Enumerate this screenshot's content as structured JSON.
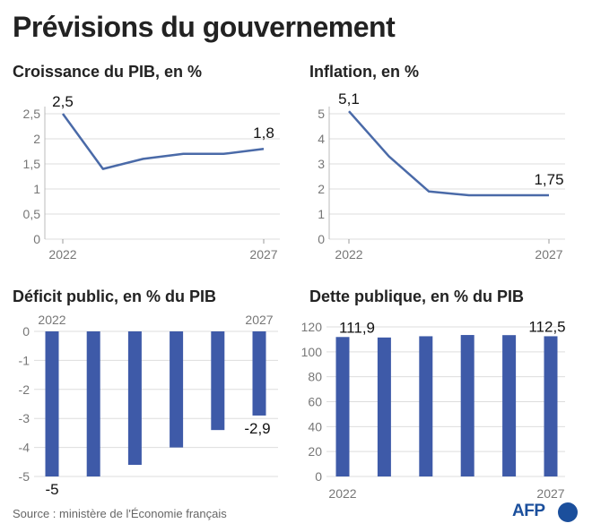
{
  "title": "Prévisions du gouvernement",
  "source": "Source : ministère de l'Économie français",
  "logo": "AFP",
  "colors": {
    "line": "#4a6aa8",
    "bar": "#3e5aa8",
    "grid": "#dddddd",
    "tick": "#777777"
  },
  "chart_data": [
    {
      "type": "line",
      "title": "Croissance du PIB, en %",
      "x": [
        2022,
        2023,
        2024,
        2025,
        2026,
        2027
      ],
      "x_tick_labels": [
        "2022",
        "2027"
      ],
      "values": [
        2.5,
        1.4,
        1.6,
        1.7,
        1.7,
        1.8
      ],
      "data_labels": {
        "first": "2,5",
        "last": "1,8"
      },
      "yticks": [
        "0",
        "0,5",
        "1",
        "1,5",
        "2",
        "2,5"
      ],
      "ylim": [
        0,
        2.5
      ],
      "grid": true
    },
    {
      "type": "line",
      "title": "Inflation, en %",
      "x": [
        2022,
        2023,
        2024,
        2025,
        2026,
        2027
      ],
      "x_tick_labels": [
        "2022",
        "2027"
      ],
      "values": [
        5.1,
        3.3,
        1.9,
        1.75,
        1.75,
        1.75
      ],
      "data_labels": {
        "first": "5,1",
        "last": "1,75"
      },
      "yticks": [
        "0",
        "1",
        "2",
        "3",
        "4",
        "5"
      ],
      "ylim": [
        0,
        5
      ],
      "grid": true
    },
    {
      "type": "bar",
      "title": "Déficit public, en % du PIB",
      "categories": [
        2022,
        2023,
        2024,
        2025,
        2026,
        2027
      ],
      "x_tick_labels": [
        "2022",
        "2027"
      ],
      "values": [
        -5,
        -5,
        -4.6,
        -4,
        -3.4,
        -2.9
      ],
      "data_labels": {
        "first": "-5",
        "last": "-2,9"
      },
      "yticks": [
        "0",
        "-1",
        "-2",
        "-3",
        "-4",
        "-5"
      ],
      "ylim": [
        -5,
        0
      ],
      "grid": true
    },
    {
      "type": "bar",
      "title": "Dette publique, en % du PIB",
      "categories": [
        2022,
        2023,
        2024,
        2025,
        2026,
        2027
      ],
      "x_tick_labels": [
        "2022",
        "2027"
      ],
      "values": [
        111.9,
        111.5,
        112.5,
        113.5,
        113.4,
        112.5
      ],
      "data_labels": {
        "first": "111,9",
        "last": "112,5"
      },
      "yticks": [
        "0",
        "20",
        "40",
        "60",
        "80",
        "100",
        "120"
      ],
      "ylim": [
        0,
        120
      ],
      "grid": true
    }
  ]
}
